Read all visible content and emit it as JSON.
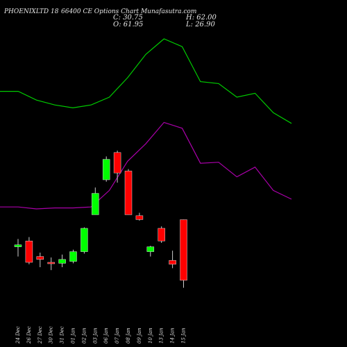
{
  "header": {
    "title_left": "PHOENIXLTD 18",
    "title_right": "66400 CE Options Chart Munafasutra.com",
    "close_label": "C: 30.75",
    "open_label": "O: 61.95",
    "high_label": "H: 62.00",
    "low_label": "L: 26.90"
  },
  "colors": {
    "background": "#000000",
    "up": "#00ff00",
    "down": "#ff0000",
    "upper_band": "#00cc00",
    "lower_band": "#aa00aa",
    "text": "#e8e8e8"
  },
  "chart_data": {
    "type": "candlestick",
    "title": "PHOENIXLTD 18 66400 CE Options Chart Munafasutra.com",
    "dates": [
      "24 Dec",
      "26 Dec",
      "27 Dec",
      "30 Dec",
      "31 Dec",
      "01 Jan",
      "02 Jan",
      "03 Jan",
      "06 Jan",
      "07 Jan",
      "08 Jan",
      "09 Jan",
      "10 Jan",
      "13 Jan",
      "14 Jan",
      "15 Jan"
    ],
    "price_range": [
      0,
      175
    ],
    "candles": [
      {
        "date": "24 Dec",
        "open": 48.0,
        "high": 52.0,
        "low": 43.0,
        "close": 49.0
      },
      {
        "date": "26 Dec",
        "open": 51.0,
        "high": 53.0,
        "low": 39.0,
        "close": 40.0
      },
      {
        "date": "27 Dec",
        "open": 43.0,
        "high": 45.0,
        "low": 37.5,
        "close": 41.5
      },
      {
        "date": "30 Dec",
        "open": 40.0,
        "high": 42.5,
        "low": 36.0,
        "close": 39.5
      },
      {
        "date": "31 Dec",
        "open": 39.5,
        "high": 44.0,
        "low": 37.5,
        "close": 41.5
      },
      {
        "date": "01 Jan",
        "open": 40.5,
        "high": 46.5,
        "low": 39.5,
        "close": 45.5
      },
      {
        "date": "02 Jan",
        "open": 45.5,
        "high": 58.0,
        "low": 44.5,
        "close": 57.5
      },
      {
        "date": "03 Jan",
        "open": 64.5,
        "high": 78.5,
        "low": 64.5,
        "close": 75.5
      },
      {
        "date": "06 Jan",
        "open": 82.5,
        "high": 94.5,
        "low": 81.5,
        "close": 93.0
      },
      {
        "date": "07 Jan",
        "open": 96.5,
        "high": 97.5,
        "low": 81.0,
        "close": 86.0
      },
      {
        "date": "08 Jan",
        "open": 87.0,
        "high": 88.0,
        "low": 64.5,
        "close": 64.5
      },
      {
        "date": "09 Jan",
        "open": 64.0,
        "high": 65.5,
        "low": 61.5,
        "close": 62.0
      },
      {
        "date": "10 Jan",
        "open": 45.5,
        "high": 48.5,
        "low": 43.0,
        "close": 48.0
      },
      {
        "date": "13 Jan",
        "open": 57.5,
        "high": 58.5,
        "low": 50.0,
        "close": 51.0
      },
      {
        "date": "14 Jan",
        "open": 41.0,
        "high": 46.0,
        "low": 37.0,
        "close": 39.0
      },
      {
        "date": "15 Jan",
        "open": 61.95,
        "high": 62.0,
        "low": 26.9,
        "close": 30.75
      }
    ],
    "upper_band": [
      128.0,
      128.0,
      123.5,
      121.0,
      119.5,
      121.0,
      125.0,
      135.0,
      147.0,
      155.0,
      151.0,
      133.0,
      132.0,
      125.0,
      127.0,
      117.0,
      111.5
    ],
    "lower_band": [
      68.5,
      68.5,
      67.5,
      68.0,
      68.0,
      68.5,
      77.0,
      92.0,
      101.0,
      112.0,
      109.0,
      91.0,
      91.5,
      84.0,
      89.0,
      77.0,
      72.5
    ]
  }
}
